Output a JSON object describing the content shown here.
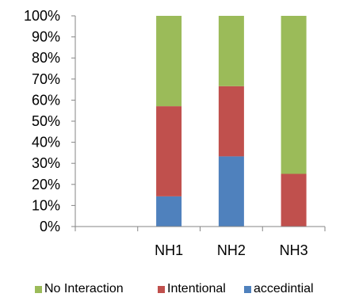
{
  "chart_data": {
    "type": "bar",
    "stacked": true,
    "normalized": true,
    "categories": [
      "",
      "NH1",
      "NH2",
      "NH3"
    ],
    "series": [
      {
        "name": "accedintial",
        "color": "#4F81BD",
        "values": [
          0,
          14.3,
          33.3,
          0
        ]
      },
      {
        "name": "Intentional",
        "color": "#C0504D",
        "values": [
          0,
          42.8,
          33.3,
          25
        ]
      },
      {
        "name": "No Interaction",
        "color": "#9BBB59",
        "values": [
          0,
          42.9,
          33.4,
          75
        ]
      }
    ],
    "y_ticks": [
      "0%",
      "10%",
      "20%",
      "30%",
      "40%",
      "50%",
      "60%",
      "70%",
      "80%",
      "90%",
      "100%"
    ],
    "ylim": [
      0,
      100
    ],
    "grid": false,
    "legend": {
      "placement": "bottom",
      "order": [
        "No Interaction",
        "Intentional",
        "accedintial"
      ]
    }
  }
}
